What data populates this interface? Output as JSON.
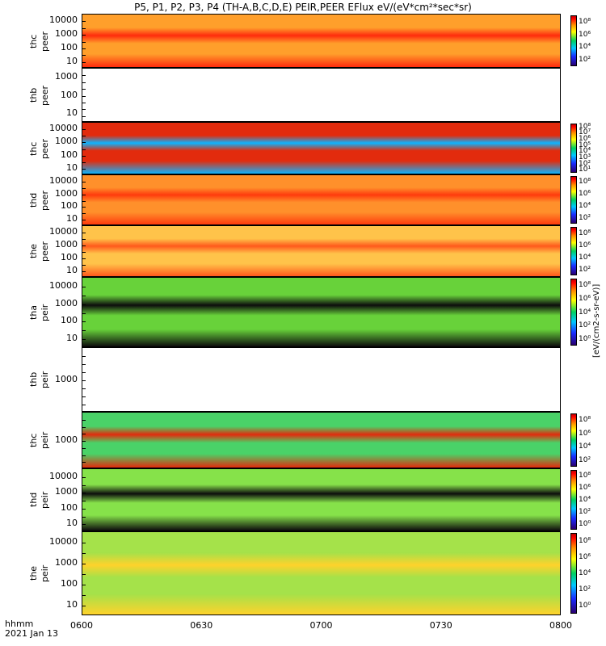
{
  "chart_data": {
    "type": "heatmap",
    "title": "P5, P1, P2, P3, P4 (TH-A,B,C,D,E) PEIR,PEER EFlux eV/(eV*cm²*sec*sr)",
    "x_axis": {
      "label_line1": "hhmm",
      "label_line2": "2021 Jan 13",
      "ticks": [
        "0600",
        "0630",
        "0700",
        "0730",
        "0800"
      ],
      "range": [
        "0600",
        "0800"
      ]
    },
    "colorbar": {
      "scale": "log",
      "units": "[eV/(cm2-s-sr-eV)]",
      "colormap": [
        "#2a0070",
        "#1a2bff",
        "#00c8ff",
        "#00d060",
        "#ffff00",
        "#ff9000",
        "#ff0000"
      ]
    },
    "panels": [
      {
        "id": "thc-peer-a",
        "ylabel_top": "thc",
        "ylabel_bottom": "peer",
        "yticks": [
          "10000",
          "1000",
          "100",
          "10"
        ],
        "cbar_ticks": [
          "10⁸",
          "10⁶",
          "10⁴",
          "10²"
        ],
        "has_data": true,
        "dominant_color": "#ff9a20",
        "band_color": "#ff2000"
      },
      {
        "id": "thb-peer",
        "ylabel_top": "thb",
        "ylabel_bottom": "peer",
        "yticks": [
          "1000",
          "100",
          "10"
        ],
        "cbar_ticks": [],
        "has_data": false
      },
      {
        "id": "thc-peer",
        "ylabel_top": "thc",
        "ylabel_bottom": "peer",
        "yticks": [
          "10000",
          "1000",
          "100",
          "10"
        ],
        "cbar_ticks": [
          "10⁸",
          "10⁷",
          "10⁶",
          "10⁵",
          "10⁴",
          "10³",
          "10²",
          "10¹"
        ],
        "has_data": true,
        "dominant_color": "#e02000",
        "band_color": "#00b0ff"
      },
      {
        "id": "thd-peer",
        "ylabel_top": "thd",
        "ylabel_bottom": "peer",
        "yticks": [
          "10000",
          "1000",
          "100",
          "10"
        ],
        "cbar_ticks": [
          "10⁸",
          "10⁶",
          "10⁴",
          "10²"
        ],
        "has_data": true,
        "dominant_color": "#ff8a20",
        "band_color": "#ff3000"
      },
      {
        "id": "the-peer",
        "ylabel_top": "the",
        "ylabel_bottom": "peer",
        "yticks": [
          "10000",
          "1000",
          "100",
          "10"
        ],
        "cbar_ticks": [
          "10⁸",
          "10⁶",
          "10⁴",
          "10²"
        ],
        "has_data": true,
        "dominant_color": "#ffc040",
        "band_color": "#ff5010"
      },
      {
        "id": "tha-peir",
        "ylabel_top": "tha",
        "ylabel_bottom": "peir",
        "yticks": [
          "10000",
          "1000",
          "100",
          "10"
        ],
        "cbar_ticks": [
          "10⁸",
          "10⁶",
          "10⁴",
          "10²",
          "10⁰"
        ],
        "has_data": true,
        "dominant_color": "#60d030",
        "band_color": "#000000"
      },
      {
        "id": "thb-peir",
        "ylabel_top": "thb",
        "ylabel_bottom": "peir",
        "yticks": [
          "1000"
        ],
        "cbar_ticks": [],
        "has_data": false
      },
      {
        "id": "thc-peir",
        "ylabel_top": "thc",
        "ylabel_bottom": "peir",
        "yticks": [
          "1000"
        ],
        "cbar_ticks": [
          "10⁸",
          "10⁶",
          "10⁴",
          "10²"
        ],
        "has_data": true,
        "dominant_color": "#40d060",
        "band_color": "#e02000"
      },
      {
        "id": "thd-peir",
        "ylabel_top": "thd",
        "ylabel_bottom": "peir",
        "yticks": [
          "10000",
          "1000",
          "100",
          "10"
        ],
        "cbar_ticks": [
          "10⁸",
          "10⁶",
          "10⁴",
          "10²",
          "10⁰"
        ],
        "has_data": true,
        "dominant_color": "#80e040",
        "band_color": "#000000"
      },
      {
        "id": "the-peir",
        "ylabel_top": "the",
        "ylabel_bottom": "peir",
        "yticks": [
          "10000",
          "1000",
          "100",
          "10"
        ],
        "cbar_ticks": [
          "10⁸",
          "10⁶",
          "10⁴",
          "10²",
          "10⁰"
        ],
        "has_data": true,
        "dominant_color": "#a0e040",
        "band_color": "#ffd020"
      }
    ]
  }
}
